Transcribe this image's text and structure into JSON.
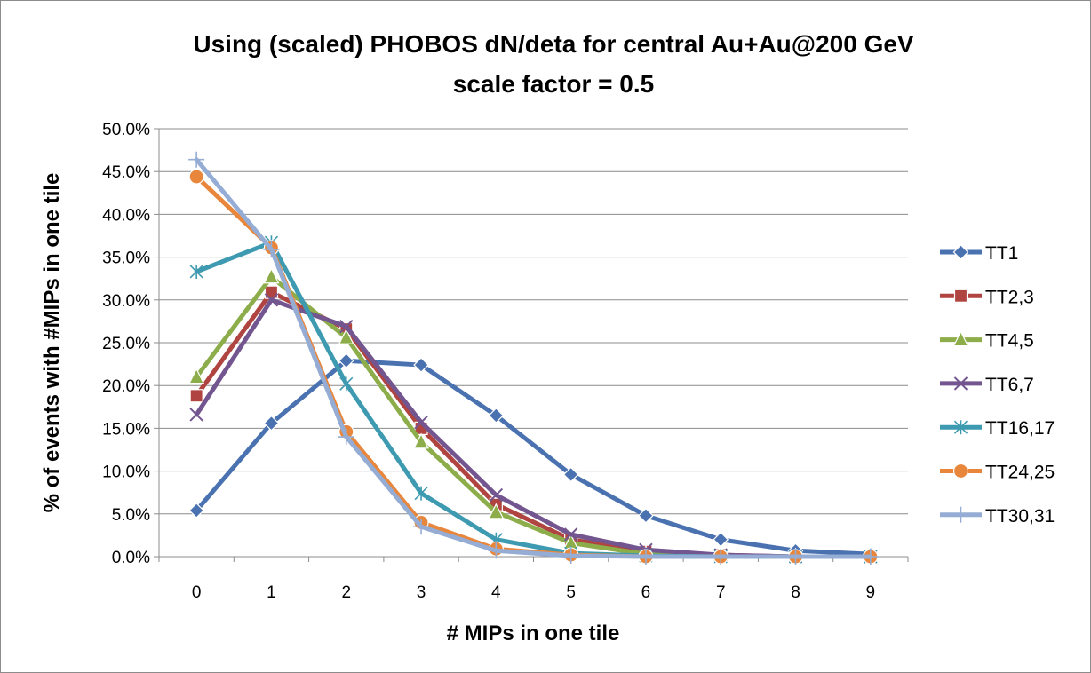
{
  "chart_data": {
    "type": "line",
    "title": "Using (scaled) PHOBOS dN/deta for central Au+Au@200 GeV",
    "subtitle": "scale factor = 0.5",
    "xlabel": "# MIPs in one tile",
    "ylabel": "% of events with #MIPs in one tile",
    "categories": [
      "0",
      "1",
      "2",
      "3",
      "4",
      "5",
      "6",
      "7",
      "8",
      "9"
    ],
    "ylim": [
      0,
      50
    ],
    "y_ticks": [
      "0.0%",
      "5.0%",
      "10.0%",
      "15.0%",
      "20.0%",
      "25.0%",
      "30.0%",
      "35.0%",
      "40.0%",
      "45.0%",
      "50.0%"
    ],
    "y_unit": "percent",
    "grid": "horizontal",
    "legend_position": "right",
    "series": [
      {
        "name": "TT1",
        "color": "#4a72b0",
        "marker": "diamond",
        "values": [
          5.4,
          15.6,
          22.9,
          22.4,
          16.5,
          9.6,
          4.8,
          2.0,
          0.7,
          0.3
        ]
      },
      {
        "name": "TT2,3",
        "color": "#b04441",
        "marker": "square",
        "values": [
          18.8,
          30.9,
          26.6,
          15.0,
          6.1,
          2.0,
          0.6,
          0.2,
          0.0,
          0.0
        ]
      },
      {
        "name": "TT4,5",
        "color": "#8cad4a",
        "marker": "triangle",
        "values": [
          21.0,
          32.7,
          25.6,
          13.4,
          5.2,
          1.6,
          0.3,
          0.1,
          0.0,
          0.0
        ]
      },
      {
        "name": "TT6,7",
        "color": "#73558f",
        "marker": "x",
        "values": [
          16.6,
          30.0,
          26.9,
          15.7,
          7.2,
          2.6,
          0.8,
          0.2,
          0.0,
          0.0
        ]
      },
      {
        "name": "TT16,17",
        "color": "#3e9ab0",
        "marker": "asterisk",
        "values": [
          33.3,
          36.7,
          20.2,
          7.4,
          2.0,
          0.4,
          0.1,
          0.0,
          0.0,
          0.0
        ]
      },
      {
        "name": "TT24,25",
        "color": "#e8863c",
        "marker": "circle",
        "values": [
          44.4,
          36.1,
          14.6,
          4.0,
          0.9,
          0.2,
          0.0,
          0.0,
          0.0,
          0.0
        ]
      },
      {
        "name": "TT30,31",
        "color": "#95add4",
        "marker": "plus",
        "values": [
          46.4,
          35.9,
          14.0,
          3.5,
          0.7,
          0.1,
          0.0,
          0.0,
          0.0,
          0.0
        ]
      }
    ]
  }
}
